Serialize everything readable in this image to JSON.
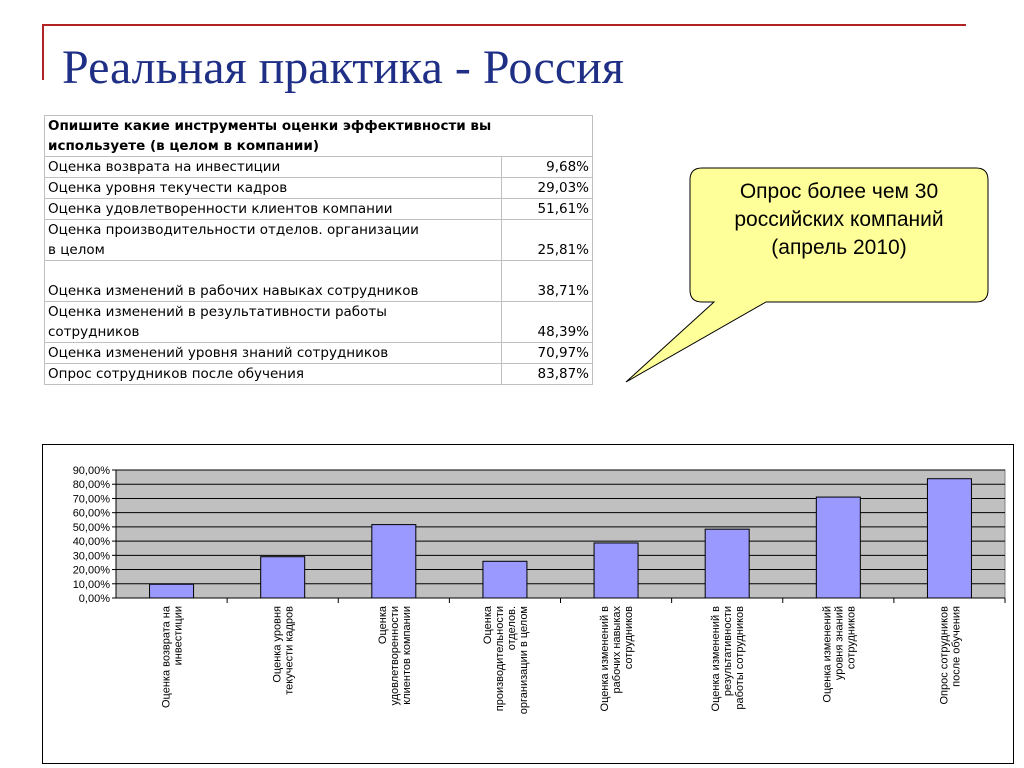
{
  "slide": {
    "title": "Реальная практика - Россия",
    "callout": [
      "Опрос более чем 30",
      "российских компаний",
      "(апрель 2010)"
    ],
    "callout_color": "#ffff99"
  },
  "table": {
    "header": [
      "Опишите какие инструменты оценки эффективности вы",
      "используете (в целом в компании)"
    ],
    "rows": [
      {
        "label": [
          "Оценка возврата на инвестиции"
        ],
        "value": "9,68%"
      },
      {
        "label": [
          "Оценка уровня текучести кадров"
        ],
        "value": "29,03%"
      },
      {
        "label": [
          "Оценка удовлетворенности клиентов компании"
        ],
        "value": "51,61%"
      },
      {
        "label": [
          "Оценка производительности отделов. организации",
          "в целом"
        ],
        "value": "25,81%"
      },
      {
        "label": [
          "",
          "Оценка изменений в рабочих навыках сотрудников"
        ],
        "value": "38,71%"
      },
      {
        "label": [
          "Оценка изменений в результативности работы",
          "сотрудников"
        ],
        "value": "48,39%"
      },
      {
        "label": [
          "Оценка изменений уровня знаний сотрудников"
        ],
        "value": "70,97%"
      },
      {
        "label": [
          "Опрос сотрудников после обучения"
        ],
        "value": "83,87%"
      }
    ]
  },
  "chart_data": {
    "type": "bar",
    "categories": [
      [
        "Оценка возврата на",
        "инвестиции"
      ],
      [
        "Оценка уровня",
        "текучести кадров"
      ],
      [
        "Оценка",
        "удовлетворенности",
        "клиентов компании"
      ],
      [
        "Оценка",
        "производительности",
        "отделов.",
        "организации в целом"
      ],
      [
        "Оценка изменений в",
        "рабочих навыках",
        "сотрудников"
      ],
      [
        "Оценка изменений в",
        "результативности",
        "работы сотрудников"
      ],
      [
        "Оценка изменений",
        "уровня знаний",
        "сотрудников"
      ],
      [
        "Опрос сотрудников",
        "после обучения"
      ]
    ],
    "values": [
      9.68,
      29.03,
      51.61,
      25.81,
      38.71,
      48.39,
      70.97,
      83.87
    ],
    "ylim": [
      0,
      90
    ],
    "yticks": [
      "0,00%",
      "10,00%",
      "20,00%",
      "30,00%",
      "40,00%",
      "50,00%",
      "60,00%",
      "70,00%",
      "80,00%",
      "90,00%"
    ],
    "grid": true,
    "colors": {
      "bar": "#9999ff",
      "plot_bg": "#c0c0c0",
      "grid": "#000000"
    }
  }
}
